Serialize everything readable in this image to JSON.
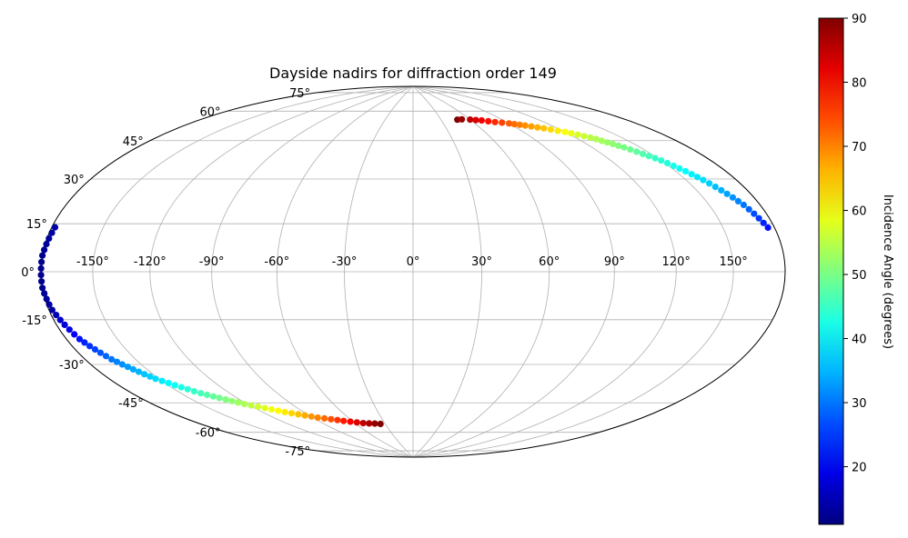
{
  "chart_data": {
    "type": "scatter",
    "projection": "Hammer-Aitoff (equal-area ellipse)",
    "title": "Dayside nadirs for diffraction order 149",
    "xlabel": "",
    "ylabel": "",
    "x_tick_labels": [
      "-150°",
      "-120°",
      "-90°",
      "-60°",
      "-30°",
      "0°",
      "30°",
      "60°",
      "90°",
      "120°",
      "150°"
    ],
    "x_ticks": [
      -150,
      -120,
      -90,
      -60,
      -30,
      0,
      30,
      60,
      90,
      120,
      150
    ],
    "y_tick_labels": [
      "75°",
      "60°",
      "45°",
      "30°",
      "15°",
      "0°",
      "-15°",
      "-30°",
      "-45°",
      "-60°",
      "-75°"
    ],
    "y_ticks": [
      75,
      60,
      45,
      30,
      15,
      0,
      -15,
      -30,
      -45,
      -60,
      -75
    ],
    "grid": true,
    "colorbar": {
      "label": "Incidence Angle (degrees)",
      "ticks": [
        20,
        30,
        40,
        50,
        60,
        70,
        80,
        90
      ],
      "range": [
        11,
        90
      ],
      "colormap": "jet"
    },
    "tracks": [
      {
        "description": "northern arc",
        "points": [
          {
            "lon": 47,
            "lat": 70,
            "incidence": 90
          },
          {
            "lon": 52,
            "lat": 70,
            "incidence": 88
          },
          {
            "lon": 60,
            "lat": 69.5,
            "incidence": 85
          },
          {
            "lon": 70,
            "lat": 68.5,
            "incidence": 81
          },
          {
            "lon": 80,
            "lat": 67,
            "incidence": 77
          },
          {
            "lon": 90,
            "lat": 65.5,
            "incidence": 73
          },
          {
            "lon": 100,
            "lat": 63.5,
            "incidence": 69
          },
          {
            "lon": 110,
            "lat": 61,
            "incidence": 65
          },
          {
            "lon": 120,
            "lat": 58,
            "incidence": 60
          },
          {
            "lon": 130,
            "lat": 54,
            "incidence": 55
          },
          {
            "lon": 140,
            "lat": 48,
            "incidence": 50
          },
          {
            "lon": 150,
            "lat": 41,
            "incidence": 44
          },
          {
            "lon": 160,
            "lat": 32,
            "incidence": 38
          },
          {
            "lon": 170,
            "lat": 22,
            "incidence": 30
          },
          {
            "lon": 176,
            "lat": 14,
            "incidence": 22
          }
        ]
      },
      {
        "description": "southern arc",
        "points": [
          {
            "lon": -178,
            "lat": 14,
            "incidence": 14
          },
          {
            "lon": -180,
            "lat": 5,
            "incidence": 12
          },
          {
            "lon": -180,
            "lat": -5,
            "incidence": 12
          },
          {
            "lon": -178,
            "lat": -12,
            "incidence": 14
          },
          {
            "lon": -172,
            "lat": -22,
            "incidence": 22
          },
          {
            "lon": -164,
            "lat": -30,
            "incidence": 30
          },
          {
            "lon": -152,
            "lat": -39,
            "incidence": 38
          },
          {
            "lon": -138,
            "lat": -47,
            "incidence": 46
          },
          {
            "lon": -122,
            "lat": -54,
            "incidence": 54
          },
          {
            "lon": -104,
            "lat": -60,
            "incidence": 62
          },
          {
            "lon": -86,
            "lat": -64.5,
            "incidence": 70
          },
          {
            "lon": -68,
            "lat": -67.5,
            "incidence": 78
          },
          {
            "lon": -52,
            "lat": -69.5,
            "incidence": 85
          },
          {
            "lon": -35,
            "lat": -70.5,
            "incidence": 90
          }
        ]
      }
    ]
  }
}
